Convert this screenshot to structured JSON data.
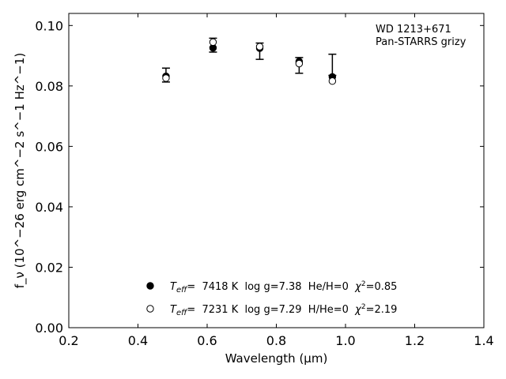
{
  "chart_data": {
    "type": "scatter",
    "title": "",
    "xlabel": "Wavelength (μm)",
    "ylabel": "f_ν (10^−26 erg cm^−2 s^−1 Hz^−1)",
    "xlim": [
      0.2,
      1.4
    ],
    "ylim": [
      0.0,
      0.104
    ],
    "xticks": [
      "0.2",
      "0.4",
      "0.6",
      "0.8",
      "1.0",
      "1.2",
      "1.4"
    ],
    "yticks": [
      "0.00",
      "0.02",
      "0.04",
      "0.06",
      "0.08",
      "0.10"
    ],
    "annotation": [
      "WD 1213+671",
      "Pan-STARRS grizy"
    ],
    "observed": {
      "x": [
        0.481,
        0.617,
        0.752,
        0.866,
        0.962
      ],
      "y": [
        0.0836,
        0.0935,
        0.0915,
        0.0877,
        0.0835
      ],
      "yerr_low": [
        0.0023,
        0.0023,
        0.0027,
        0.0035,
        0.0
      ],
      "yerr_high": [
        0.0023,
        0.0023,
        0.0027,
        0.0017,
        0.007
      ]
    },
    "series": [
      {
        "name": "T_eff= 7418 K  log g=7.38  He/H=0  χ²=0.85",
        "marker": "filled-circle",
        "x": [
          0.481,
          0.617,
          0.752,
          0.866,
          0.962
        ],
        "y": [
          0.0832,
          0.0926,
          0.0925,
          0.0881,
          0.083
        ]
      },
      {
        "name": "T_eff= 7231 K  log g=7.29  H/He=0  χ²=2.19",
        "marker": "open-circle",
        "x": [
          0.481,
          0.617,
          0.752,
          0.866,
          0.962
        ],
        "y": [
          0.0826,
          0.0945,
          0.093,
          0.0874,
          0.0816
        ]
      }
    ],
    "legend": [
      {
        "teff_label": "T",
        "teff_sub": "eff",
        "text": "=  7418 K  log g=7.38  He/H=0  ",
        "chi_text": "=0.85"
      },
      {
        "teff_label": "T",
        "teff_sub": "eff",
        "text": "=  7231 K  log g=7.29  H/He=0  ",
        "chi_text": "=2.19"
      }
    ],
    "legend_position": "bottom-center",
    "grid": false,
    "colors": {
      "marker": "#000000",
      "axes": "#000000",
      "background": "#ffffff"
    }
  }
}
